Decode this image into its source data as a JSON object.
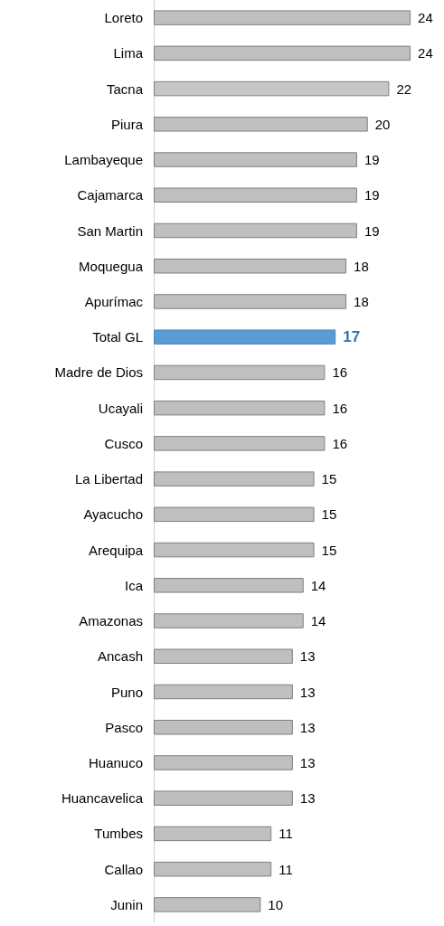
{
  "chart_data": {
    "type": "bar",
    "orientation": "horizontal",
    "data_labels": true,
    "categories": [
      "Loreto",
      "Lima",
      "Tacna",
      "Piura",
      "Lambayeque",
      "Cajamarca",
      "San Martin",
      "Moquegua",
      "Apurímac",
      "Total GL",
      "Madre de Dios",
      "Ucayali",
      "Cusco",
      "La Libertad",
      "Ayacucho",
      "Arequipa",
      "Ica",
      "Amazonas",
      "Ancash",
      "Puno",
      "Pasco",
      "Huanuco",
      "Huancavelica",
      "Tumbes",
      "Callao",
      "Junin"
    ],
    "values": [
      24,
      24,
      22,
      20,
      19,
      19,
      19,
      18,
      18,
      17,
      16,
      16,
      16,
      15,
      15,
      15,
      14,
      14,
      13,
      13,
      13,
      13,
      13,
      11,
      11,
      10
    ],
    "colors": [
      "#bfbfbf",
      "#bfbfbf",
      "#c6c6c6",
      "#bfbfbf",
      "#bfbfbf",
      "#bfbfbf",
      "#bfbfbf",
      "#bfbfbf",
      "#bfbfbf",
      "#5b9bd5",
      "#bfbfbf",
      "#bfbfbf",
      "#bfbfbf",
      "#bfbfbf",
      "#bfbfbf",
      "#bfbfbf",
      "#bfbfbf",
      "#bfbfbf",
      "#bfbfbf",
      "#bfbfbf",
      "#bfbfbf",
      "#bfbfbf",
      "#bfbfbf",
      "#bfbfbf",
      "#bfbfbf",
      "#bfbfbf"
    ]
  }
}
